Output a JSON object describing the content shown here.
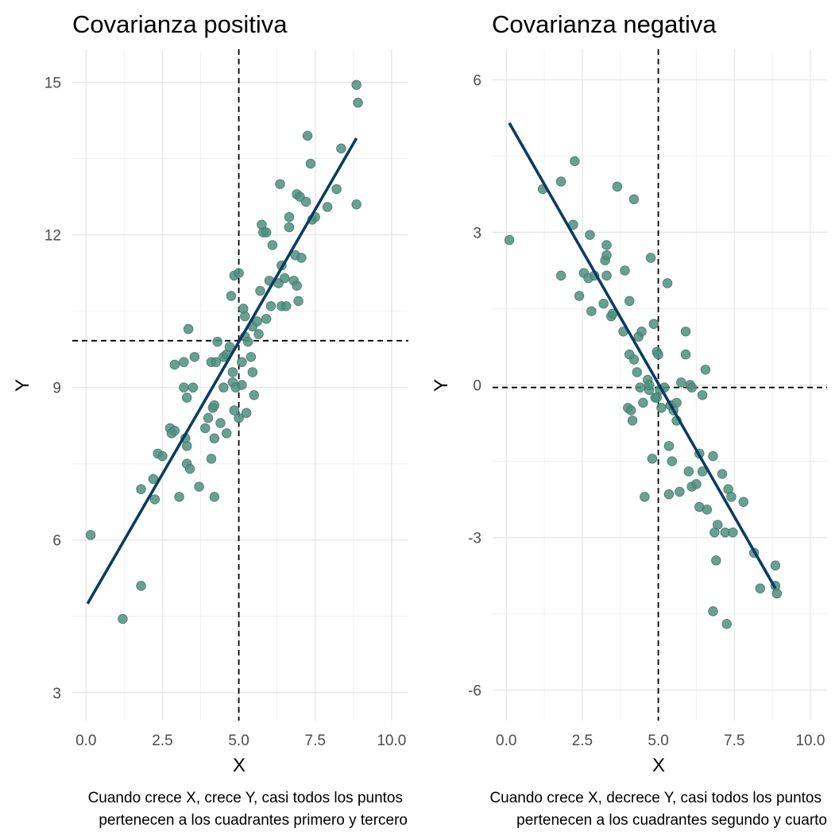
{
  "chart_data": [
    {
      "type": "scatter",
      "title": "Covarianza positiva",
      "xlabel": "X",
      "ylabel": "Y",
      "xlim": [
        -0.45,
        10.55
      ],
      "ylim": [
        2.45,
        15.65
      ],
      "x_ticks": [
        {
          "value": 0,
          "label": "0.0"
        },
        {
          "value": 2.5,
          "label": "2.5"
        },
        {
          "value": 5,
          "label": "5.0"
        },
        {
          "value": 7.5,
          "label": "7.5"
        },
        {
          "value": 10,
          "label": "10.0"
        }
      ],
      "y_ticks": [
        {
          "value": 3,
          "label": "3"
        },
        {
          "value": 6,
          "label": "6"
        },
        {
          "value": 9,
          "label": "9"
        },
        {
          "value": 12,
          "label": "12"
        },
        {
          "value": 15,
          "label": "15"
        }
      ],
      "mean_lines": {
        "x": 5.0,
        "y": 9.92
      },
      "fit_line": [
        [
          0.05,
          4.75
        ],
        [
          8.85,
          13.9
        ]
      ],
      "grid": true,
      "point_color": "#4e8f7f",
      "line_color": "#0b3b60",
      "caption_lines": [
        "Cuando crece X, crece Y, casi todos los puntos",
        "pertenecen a los cuadrantes primero y tercero"
      ],
      "points": [
        [
          0.15,
          6.1
        ],
        [
          1.2,
          4.45
        ],
        [
          1.8,
          5.1
        ],
        [
          1.8,
          7.0
        ],
        [
          2.2,
          7.2
        ],
        [
          2.25,
          6.8
        ],
        [
          2.35,
          7.7
        ],
        [
          2.5,
          7.65
        ],
        [
          2.75,
          8.2
        ],
        [
          2.8,
          8.1
        ],
        [
          2.9,
          8.15
        ],
        [
          2.9,
          9.45
        ],
        [
          3.05,
          6.85
        ],
        [
          3.2,
          9.0
        ],
        [
          3.2,
          9.5
        ],
        [
          3.25,
          8.0
        ],
        [
          3.3,
          7.5
        ],
        [
          3.3,
          7.85
        ],
        [
          3.3,
          8.8
        ],
        [
          3.35,
          10.15
        ],
        [
          3.4,
          7.4
        ],
        [
          3.5,
          9.0
        ],
        [
          3.55,
          9.6
        ],
        [
          3.7,
          7.05
        ],
        [
          3.9,
          8.2
        ],
        [
          4.0,
          8.4
        ],
        [
          4.1,
          7.6
        ],
        [
          4.1,
          9.5
        ],
        [
          4.15,
          8.6
        ],
        [
          4.2,
          8.0
        ],
        [
          4.2,
          8.65
        ],
        [
          4.2,
          6.85
        ],
        [
          4.25,
          9.5
        ],
        [
          4.3,
          9.9
        ],
        [
          4.4,
          8.3
        ],
        [
          4.5,
          9.6
        ],
        [
          4.5,
          9.0
        ],
        [
          4.6,
          8.1
        ],
        [
          4.6,
          9.65
        ],
        [
          4.7,
          9.8
        ],
        [
          4.75,
          10.8
        ],
        [
          4.8,
          9.1
        ],
        [
          4.8,
          9.3
        ],
        [
          4.85,
          8.55
        ],
        [
          4.85,
          11.2
        ],
        [
          4.9,
          9.0
        ],
        [
          5.0,
          11.25
        ],
        [
          5.0,
          8.4
        ],
        [
          5.1,
          9.05
        ],
        [
          5.1,
          9.5
        ],
        [
          5.15,
          10.55
        ],
        [
          5.2,
          10.4
        ],
        [
          5.2,
          10.0
        ],
        [
          5.25,
          8.5
        ],
        [
          5.3,
          9.9
        ],
        [
          5.4,
          9.6
        ],
        [
          5.45,
          10.2
        ],
        [
          5.45,
          9.3
        ],
        [
          5.5,
          8.85
        ],
        [
          5.6,
          10.3
        ],
        [
          5.65,
          10.05
        ],
        [
          5.7,
          10.9
        ],
        [
          5.75,
          12.2
        ],
        [
          5.8,
          12.05
        ],
        [
          5.9,
          12.05
        ],
        [
          5.9,
          10.35
        ],
        [
          6.0,
          11.1
        ],
        [
          6.05,
          10.6
        ],
        [
          6.1,
          11.8
        ],
        [
          6.3,
          11.05
        ],
        [
          6.35,
          13.0
        ],
        [
          6.4,
          11.4
        ],
        [
          6.4,
          10.6
        ],
        [
          6.5,
          11.15
        ],
        [
          6.55,
          10.6
        ],
        [
          6.65,
          12.35
        ],
        [
          6.65,
          12.15
        ],
        [
          6.8,
          11.1
        ],
        [
          6.85,
          11.6
        ],
        [
          6.9,
          12.8
        ],
        [
          6.9,
          11.0
        ],
        [
          6.95,
          10.7
        ],
        [
          7.0,
          12.75
        ],
        [
          7.05,
          11.55
        ],
        [
          7.2,
          12.65
        ],
        [
          7.25,
          13.95
        ],
        [
          7.35,
          13.4
        ],
        [
          7.4,
          12.3
        ],
        [
          7.5,
          12.35
        ],
        [
          7.9,
          12.55
        ],
        [
          8.2,
          12.9
        ],
        [
          8.35,
          13.7
        ],
        [
          8.85,
          14.95
        ],
        [
          8.9,
          14.6
        ],
        [
          8.85,
          12.6
        ]
      ]
    },
    {
      "type": "scatter",
      "title": "Covarianza negativa",
      "xlabel": "X",
      "ylabel": "Y",
      "xlim": [
        -0.45,
        10.55
      ],
      "ylim": [
        -6.6,
        6.6
      ],
      "x_ticks": [
        {
          "value": 0,
          "label": "0.0"
        },
        {
          "value": 2.5,
          "label": "2.5"
        },
        {
          "value": 5,
          "label": "5.0"
        },
        {
          "value": 7.5,
          "label": "7.5"
        },
        {
          "value": 10,
          "label": "10.0"
        }
      ],
      "y_ticks": [
        {
          "value": -6,
          "label": "-6"
        },
        {
          "value": -3,
          "label": "-3"
        },
        {
          "value": 0,
          "label": "0"
        },
        {
          "value": 3,
          "label": "3"
        },
        {
          "value": 6,
          "label": "6"
        }
      ],
      "mean_lines": {
        "x": 5.0,
        "y": -0.05
      },
      "fit_line": [
        [
          0.1,
          5.15
        ],
        [
          8.85,
          -4.0
        ]
      ],
      "grid": true,
      "point_color": "#4e8f7f",
      "line_color": "#0b3b60",
      "caption_lines": [
        "Cuando crece X, decrece Y, casi todos los puntos",
        "pertenecen a los cuadrantes segundo y cuarto"
      ],
      "points": [
        [
          0.1,
          2.85
        ],
        [
          1.2,
          3.85
        ],
        [
          1.8,
          4.0
        ],
        [
          1.8,
          2.15
        ],
        [
          2.2,
          3.15
        ],
        [
          2.25,
          4.4
        ],
        [
          2.4,
          1.75
        ],
        [
          2.55,
          2.2
        ],
        [
          2.7,
          2.1
        ],
        [
          2.75,
          2.95
        ],
        [
          2.8,
          1.45
        ],
        [
          2.9,
          2.15
        ],
        [
          3.2,
          1.6
        ],
        [
          3.25,
          2.45
        ],
        [
          3.3,
          2.75
        ],
        [
          3.3,
          2.15
        ],
        [
          3.3,
          2.55
        ],
        [
          3.45,
          1.35
        ],
        [
          3.5,
          1.4
        ],
        [
          3.65,
          3.9
        ],
        [
          3.85,
          1.05
        ],
        [
          3.9,
          2.25
        ],
        [
          4.0,
          -0.45
        ],
        [
          4.05,
          0.6
        ],
        [
          4.05,
          1.65
        ],
        [
          4.1,
          -0.5
        ],
        [
          4.15,
          -0.7
        ],
        [
          4.2,
          0.5
        ],
        [
          4.2,
          3.65
        ],
        [
          4.3,
          0.25
        ],
        [
          4.35,
          0.95
        ],
        [
          4.4,
          -0.05
        ],
        [
          4.45,
          1.05
        ],
        [
          4.5,
          -0.35
        ],
        [
          4.55,
          -2.2
        ],
        [
          4.65,
          0.1
        ],
        [
          4.7,
          -0.1
        ],
        [
          4.75,
          2.5
        ],
        [
          4.8,
          -1.45
        ],
        [
          4.85,
          1.2
        ],
        [
          4.9,
          -0.25
        ],
        [
          4.95,
          0.65
        ],
        [
          5.0,
          0.6
        ],
        [
          5.05,
          -0.1
        ],
        [
          5.1,
          -0.45
        ],
        [
          5.2,
          -0.05
        ],
        [
          5.3,
          2.0
        ],
        [
          5.35,
          -1.2
        ],
        [
          5.35,
          -2.15
        ],
        [
          5.4,
          -0.4
        ],
        [
          5.45,
          -1.5
        ],
        [
          5.5,
          -0.5
        ],
        [
          5.6,
          -0.7
        ],
        [
          5.7,
          -2.1
        ],
        [
          5.75,
          0.05
        ],
        [
          5.9,
          0.6
        ],
        [
          5.9,
          1.05
        ],
        [
          6.0,
          -1.7
        ],
        [
          6.05,
          0.0
        ],
        [
          6.1,
          -2.0
        ],
        [
          6.25,
          -1.95
        ],
        [
          6.35,
          -1.35
        ],
        [
          6.35,
          -2.4
        ],
        [
          6.45,
          -1.7
        ],
        [
          6.45,
          -0.2
        ],
        [
          6.55,
          0.3
        ],
        [
          6.6,
          -2.45
        ],
        [
          6.8,
          -1.4
        ],
        [
          6.8,
          -4.45
        ],
        [
          6.85,
          -2.9
        ],
        [
          6.9,
          -3.45
        ],
        [
          6.95,
          -2.75
        ],
        [
          7.1,
          -1.75
        ],
        [
          7.2,
          -2.9
        ],
        [
          7.25,
          -4.7
        ],
        [
          7.3,
          -2.05
        ],
        [
          7.4,
          -2.2
        ],
        [
          7.45,
          -2.9
        ],
        [
          7.8,
          -2.3
        ],
        [
          8.15,
          -3.3
        ],
        [
          8.35,
          -4.0
        ],
        [
          8.85,
          -3.95
        ],
        [
          8.85,
          -3.55
        ],
        [
          8.9,
          -4.1
        ],
        [
          6.1,
          -0.05
        ],
        [
          4.95,
          -0.25
        ],
        [
          4.7,
          0.0
        ],
        [
          5.6,
          -0.35
        ]
      ]
    }
  ]
}
